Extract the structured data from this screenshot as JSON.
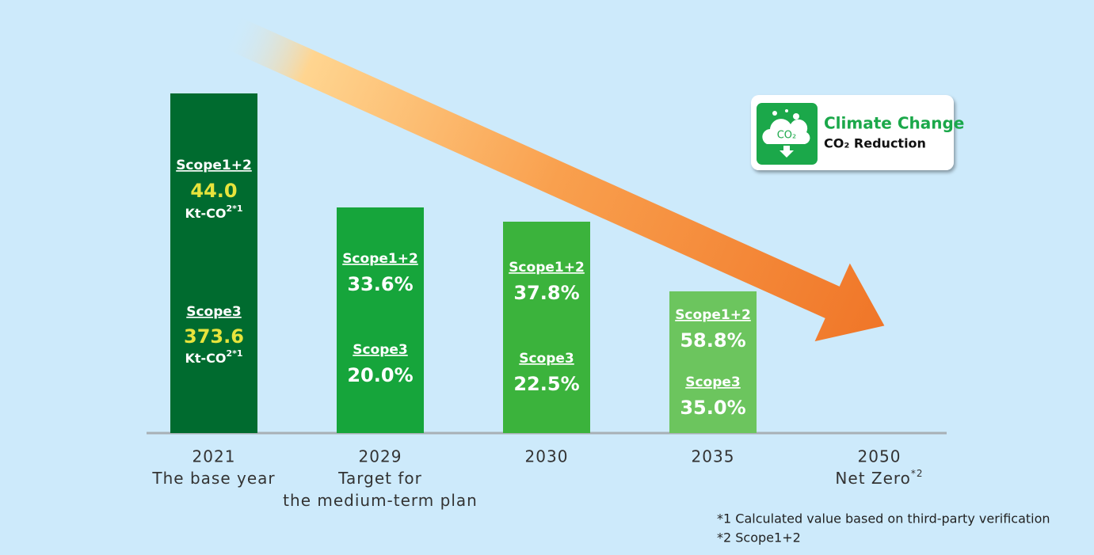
{
  "badge": {
    "icon_label": "CO₂",
    "title": "Climate Change",
    "subtitle": "CO₂ Reduction"
  },
  "columns": [
    {
      "year": "2021",
      "caption": [
        "The base year"
      ],
      "scope12_label": "Scope1+2",
      "scope12_value": "44.0",
      "scope12_unit": "Kt-CO",
      "scope12_unit_note": "2*1",
      "scope3_label": "Scope3",
      "scope3_value": "373.6",
      "scope3_unit": "Kt-CO",
      "scope3_unit_note": "2*1"
    },
    {
      "year": "2029",
      "caption": [
        "Target for",
        "the medium-term plan"
      ],
      "scope12_label": "Scope1+2",
      "scope12_value": "33.6%",
      "scope3_label": "Scope3",
      "scope3_value": "20.0%"
    },
    {
      "year": "2030",
      "caption": [],
      "scope12_label": "Scope1+2",
      "scope12_value": "37.8%",
      "scope3_label": "Scope3",
      "scope3_value": "22.5%"
    },
    {
      "year": "2035",
      "caption": [],
      "scope12_label": "Scope1+2",
      "scope12_value": "58.8%",
      "scope3_label": "Scope3",
      "scope3_value": "35.0%"
    },
    {
      "year": "2050",
      "caption": [
        "Net Zero"
      ],
      "caption_note": "*2"
    }
  ],
  "footnotes": [
    "*1 Calculated value based on third-party verification",
    "*2 Scope1+2"
  ]
}
